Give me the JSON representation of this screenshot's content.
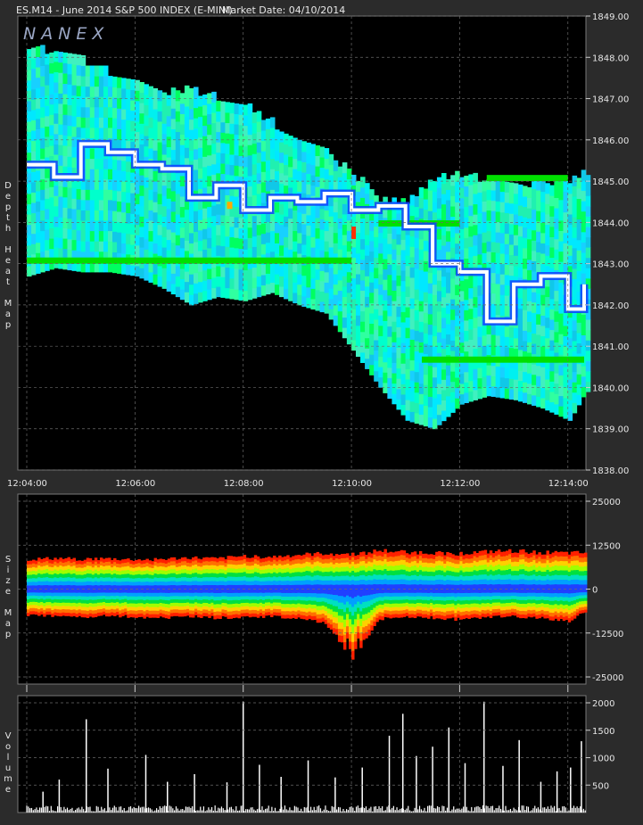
{
  "header": {
    "symbol_line": "ES.M14 - June 2014 S&P 500 INDEX (E-MINI)",
    "market_date": "Market Date: 04/10/2014"
  },
  "logo": "NANEX",
  "panels": {
    "depth_label": "Depth Heat Map",
    "size_label": "Size Map",
    "volume_label": "Volume"
  },
  "colors": {
    "background": "#2b2b2b",
    "plot_bg": "#000000",
    "grid": "#6a6a6a",
    "price_line": "#ffffff",
    "heat_low": "#00e0ff",
    "heat_mid": "#20f0a0",
    "heat_high": "#00e000",
    "heat_peak": "#ff3000",
    "volume_bar": "#ffffff"
  },
  "chart_data": [
    {
      "type": "heatmap",
      "title": "Depth Heat Map",
      "x_ticks": [
        "12:04:00",
        "12:06:00",
        "12:08:00",
        "12:10:00",
        "12:12:00",
        "12:14:00"
      ],
      "x_range": [
        "12:04:00",
        "12:14:20"
      ],
      "y_ticks": [
        "1849.00",
        "1848.00",
        "1847.00",
        "1846.00",
        "1845.00",
        "1844.00",
        "1843.00",
        "1842.00",
        "1841.00",
        "1840.00",
        "1839.00",
        "1838.00"
      ],
      "ylim": [
        1838.0,
        1849.0
      ],
      "grid": true,
      "series": [
        {
          "name": "",
          "x_minutes": [
            0,
            0.5,
            1.0,
            1.5,
            2.0,
            2.5,
            3.0,
            3.5,
            4.0,
            4.5,
            5.0,
            5.5,
            6.0,
            6.5,
            7.0,
            7.5,
            8.0,
            8.5,
            9.0,
            9.5,
            10.0,
            10.3
          ],
          "price": [
            1845.4,
            1845.1,
            1845.9,
            1845.7,
            1845.4,
            1845.3,
            1844.6,
            1844.9,
            1844.3,
            1844.6,
            1844.5,
            1844.7,
            1844.3,
            1844.4,
            1843.9,
            1843.0,
            1842.8,
            1841.6,
            1842.5,
            1842.7,
            1841.9,
            1842.5
          ]
        }
      ],
      "depth_top": [
        1848.2,
        1848.0,
        1847.8,
        1847.5,
        1847.2,
        1847.0,
        1847.1,
        1846.9,
        1846.7,
        1846.3,
        1846.0,
        1845.6,
        1845.1,
        1844.4,
        1844.4,
        1845.0,
        1845.0,
        1844.9,
        1844.7,
        1844.9,
        1844.9,
        1845.1
      ],
      "depth_bottom": [
        1842.7,
        1842.9,
        1842.8,
        1842.8,
        1842.7,
        1842.4,
        1842.0,
        1842.2,
        1842.1,
        1842.3,
        1842.0,
        1841.8,
        1840.9,
        1840.0,
        1839.2,
        1839.0,
        1839.6,
        1839.8,
        1839.7,
        1839.5,
        1839.2,
        1839.9
      ]
    },
    {
      "type": "area",
      "title": "Size Map",
      "y_ticks": [
        "25000",
        "12500",
        "0",
        "-12500",
        "-25000"
      ],
      "ylim": [
        -25000,
        25000
      ],
      "grid": true,
      "x_minutes": [
        0,
        0.5,
        1.0,
        1.5,
        2.0,
        2.5,
        3.0,
        3.5,
        4.0,
        4.5,
        5.0,
        5.5,
        6.0,
        6.5,
        7.0,
        7.5,
        8.0,
        8.5,
        9.0,
        9.5,
        10.0,
        10.3
      ],
      "upper": [
        8500,
        8800,
        8600,
        8700,
        8400,
        8600,
        9000,
        8700,
        9500,
        9200,
        9800,
        10200,
        10000,
        11000,
        10600,
        10400,
        10200,
        10700,
        10900,
        10500,
        10300,
        10400
      ],
      "lower": [
        -7500,
        -7800,
        -8000,
        -7600,
        -7900,
        -8100,
        -7700,
        -8200,
        -7800,
        -7900,
        -8300,
        -9500,
        -20000,
        -8400,
        -8100,
        -8200,
        -8600,
        -8000,
        -7900,
        -8400,
        -9000,
        -6500
      ]
    },
    {
      "type": "bar",
      "title": "Volume",
      "y_ticks": [
        "2000",
        "1500",
        "1000",
        "500"
      ],
      "ylim": [
        0,
        2000
      ],
      "grid": true,
      "spikes": [
        {
          "t": 0.3,
          "v": 380
        },
        {
          "t": 0.6,
          "v": 600
        },
        {
          "t": 1.1,
          "v": 1700
        },
        {
          "t": 1.5,
          "v": 800
        },
        {
          "t": 2.2,
          "v": 1050
        },
        {
          "t": 2.6,
          "v": 560
        },
        {
          "t": 3.1,
          "v": 700
        },
        {
          "t": 3.7,
          "v": 550
        },
        {
          "t": 4.0,
          "v": 2020
        },
        {
          "t": 4.3,
          "v": 870
        },
        {
          "t": 4.7,
          "v": 650
        },
        {
          "t": 5.2,
          "v": 950
        },
        {
          "t": 5.7,
          "v": 640
        },
        {
          "t": 6.2,
          "v": 820
        },
        {
          "t": 6.7,
          "v": 1400
        },
        {
          "t": 6.95,
          "v": 1800
        },
        {
          "t": 7.2,
          "v": 1030
        },
        {
          "t": 7.5,
          "v": 1200
        },
        {
          "t": 7.8,
          "v": 1550
        },
        {
          "t": 8.1,
          "v": 900
        },
        {
          "t": 8.45,
          "v": 2020
        },
        {
          "t": 8.8,
          "v": 850
        },
        {
          "t": 9.1,
          "v": 1320
        },
        {
          "t": 9.5,
          "v": 560
        },
        {
          "t": 9.8,
          "v": 750
        },
        {
          "t": 10.05,
          "v": 820
        },
        {
          "t": 10.25,
          "v": 1300
        }
      ]
    }
  ]
}
